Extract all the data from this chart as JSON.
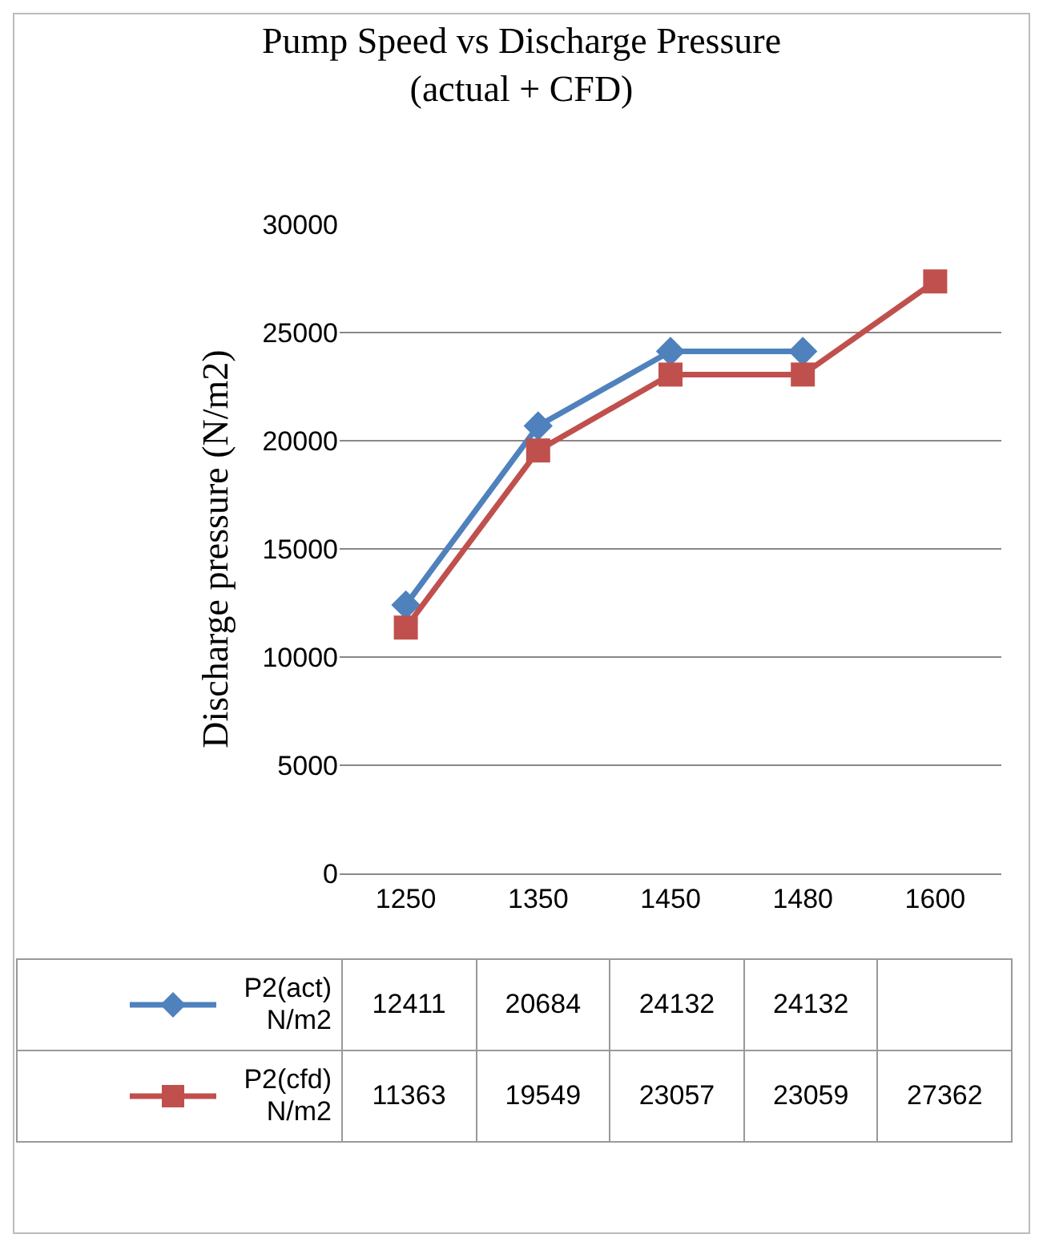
{
  "chart_data": {
    "type": "line",
    "title": "Pump Speed vs Discharge Pressure\n(actual + CFD)",
    "ylabel": "Discharge pressure (N/m2)",
    "categories": [
      "1250",
      "1350",
      "1450",
      "1480",
      "1600"
    ],
    "series": [
      {
        "name": "P2(act) N/m2",
        "color": "#4f81bd",
        "marker": "diamond",
        "values": [
          12411,
          20684,
          24132,
          24132,
          null
        ]
      },
      {
        "name": "P2(cfd) N/m2",
        "color": "#c0504d",
        "marker": "square",
        "values": [
          11363,
          19549,
          23057,
          23059,
          27362
        ]
      }
    ],
    "ylim": [
      0,
      30000
    ],
    "yticks": [
      0,
      5000,
      10000,
      15000,
      20000,
      25000,
      30000
    ],
    "grid": "y",
    "legend": "bottom left",
    "data_labels": true,
    "line_style": "solid"
  }
}
